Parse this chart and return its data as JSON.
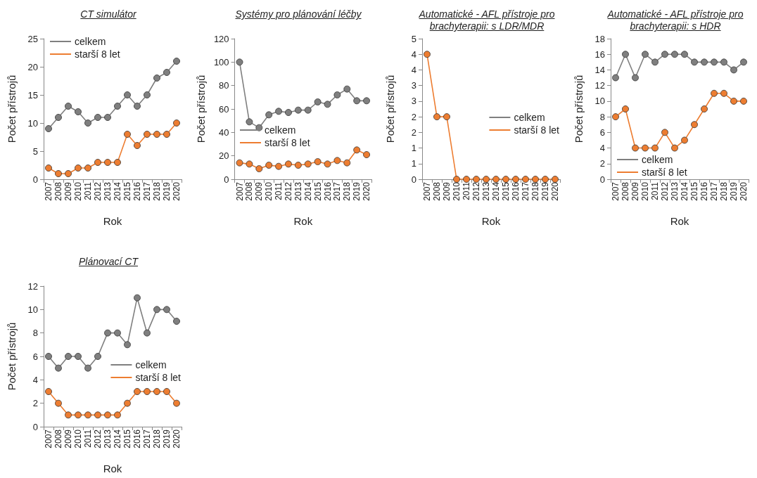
{
  "chart_data": [
    {
      "type": "line",
      "title": "CT simulátor",
      "xlabel": "Rok",
      "ylabel": "Počet přístrojů",
      "categories": [
        "2007",
        "2008",
        "2009",
        "2010",
        "2011",
        "2012",
        "2013",
        "2014",
        "2015",
        "2016",
        "2017",
        "2018",
        "2019",
        "2020"
      ],
      "series": [
        {
          "name": "celkem",
          "color": "#7f7f7f",
          "values": [
            9,
            11,
            13,
            12,
            10,
            11,
            11,
            13,
            15,
            13,
            15,
            18,
            19,
            21
          ]
        },
        {
          "name": "starší 8 let",
          "color": "#ed7d31",
          "values": [
            2,
            1,
            1,
            2,
            2,
            3,
            3,
            3,
            8,
            6,
            8,
            8,
            8,
            10
          ]
        }
      ],
      "ylim": [
        0,
        25
      ],
      "yticks": [
        0,
        5,
        10,
        15,
        20,
        25
      ],
      "grid": false,
      "legend": "top left",
      "marker": "circle"
    },
    {
      "type": "line",
      "title": "Systémy pro plánování léčby",
      "xlabel": "Rok",
      "ylabel": "Počet přístrojů",
      "categories": [
        "2007",
        "2008",
        "2009",
        "2010",
        "2011",
        "2012",
        "2013",
        "2014",
        "2015",
        "2016",
        "2017",
        "2018",
        "2019",
        "2020"
      ],
      "series": [
        {
          "name": "celkem",
          "color": "#7f7f7f",
          "values": [
            100,
            49,
            44,
            55,
            58,
            57,
            59,
            59,
            66,
            64,
            72,
            77,
            67,
            67
          ]
        },
        {
          "name": "starší 8 let",
          "color": "#ed7d31",
          "values": [
            14,
            13,
            9,
            12,
            11,
            13,
            12,
            13,
            15,
            13,
            16,
            14,
            25,
            21
          ]
        }
      ],
      "ylim": [
        0,
        120
      ],
      "yticks": [
        0,
        20,
        40,
        60,
        80,
        100,
        120
      ],
      "grid": false,
      "legend": "left",
      "marker": "circle"
    },
    {
      "type": "line",
      "title": "Automatické - AFL přístroje pro brachyterapii: s LDR/MDR",
      "xlabel": "Rok",
      "ylabel": "Počet přístrojů",
      "categories": [
        "2007",
        "2008",
        "2009",
        "2010",
        "2011",
        "2012",
        "2013",
        "2014",
        "2015",
        "2016",
        "2017",
        "2018",
        "2019",
        "2020"
      ],
      "series": [
        {
          "name": "celkem",
          "color": "#7f7f7f",
          "values": [
            null,
            null,
            null,
            null,
            null,
            null,
            null,
            null,
            null,
            null,
            null,
            null,
            null,
            null
          ]
        },
        {
          "name": "starší 8 let",
          "color": "#ed7d31",
          "values": [
            4,
            2,
            2,
            0,
            0,
            0,
            0,
            0,
            0,
            0,
            0,
            0,
            0,
            0
          ]
        }
      ],
      "ylim": [
        0,
        4.5
      ],
      "yticks": [
        0,
        {
          "value": 0.5,
          "label": "1"
        },
        1,
        {
          "value": 1.5,
          "label": "2"
        },
        2,
        {
          "value": 2.5,
          "label": "3"
        },
        3,
        {
          "value": 3.5,
          "label": "4"
        },
        4,
        {
          "value": 4.5,
          "label": "5"
        }
      ],
      "grid": false,
      "legend": "right",
      "marker": "circle"
    },
    {
      "type": "line",
      "title": "Automatické - AFL přístroje pro brachyterapii: s HDR",
      "xlabel": "Rok",
      "ylabel": "Počet přístrojů",
      "categories": [
        "2007",
        "2008",
        "2009",
        "2010",
        "2011",
        "2012",
        "2013",
        "2014",
        "2015",
        "2016",
        "2017",
        "2018",
        "2019",
        "2020"
      ],
      "series": [
        {
          "name": "celkem",
          "color": "#7f7f7f",
          "values": [
            13,
            16,
            13,
            16,
            15,
            16,
            16,
            16,
            15,
            15,
            15,
            15,
            14,
            15
          ]
        },
        {
          "name": "starší 8 let",
          "color": "#ed7d31",
          "values": [
            8,
            9,
            4,
            4,
            4,
            6,
            4,
            5,
            7,
            9,
            11,
            11,
            10,
            10
          ]
        }
      ],
      "ylim": [
        0,
        18
      ],
      "yticks": [
        0,
        2,
        4,
        6,
        8,
        10,
        12,
        14,
        16,
        18
      ],
      "grid": false,
      "legend": "bottom left",
      "marker": "circle"
    },
    {
      "type": "line",
      "title": "Plánovací CT",
      "xlabel": "Rok",
      "ylabel": "Počet přístrojů",
      "categories": [
        "2007",
        "2008",
        "2009",
        "2010",
        "2011",
        "2012",
        "2013",
        "2014",
        "2015",
        "2016",
        "2017",
        "2018",
        "2019",
        "2020"
      ],
      "series": [
        {
          "name": "celkem",
          "color": "#7f7f7f",
          "values": [
            6,
            5,
            6,
            6,
            5,
            6,
            8,
            8,
            7,
            11,
            8,
            10,
            10,
            9
          ]
        },
        {
          "name": "starší 8 let",
          "color": "#ed7d31",
          "values": [
            3,
            2,
            1,
            1,
            1,
            1,
            1,
            1,
            2,
            3,
            3,
            3,
            3,
            2
          ]
        }
      ],
      "ylim": [
        0,
        12
      ],
      "yticks": [
        0,
        2,
        4,
        6,
        8,
        10,
        12
      ],
      "grid": false,
      "legend": "right",
      "marker": "circle"
    }
  ]
}
